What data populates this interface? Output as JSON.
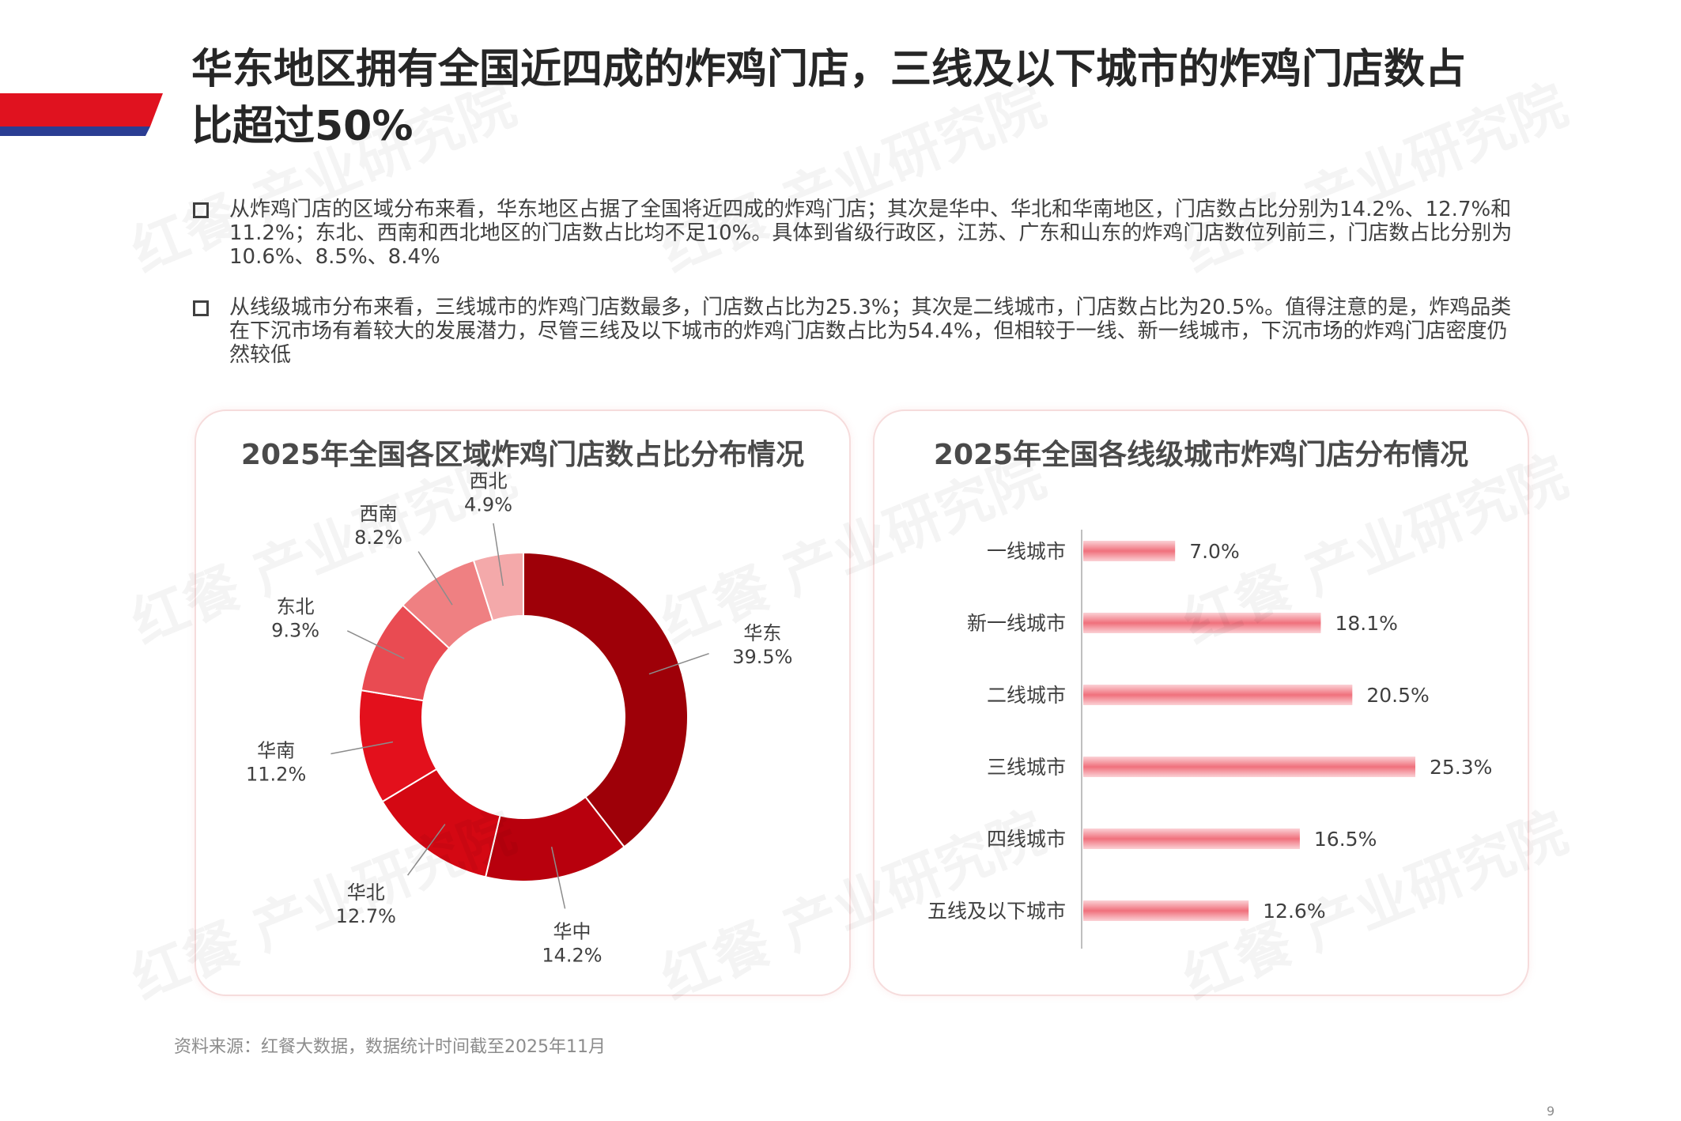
{
  "title": "华东地区拥有全国近四成的炸鸡门店，三线及以下城市的炸鸡门店数占比超过50%",
  "bullets": [
    "从炸鸡门店的区域分布来看，华东地区占据了全国将近四成的炸鸡门店；其次是华中、华北和华南地区，门店数占比分别为14.2%、12.7%和11.2%；东北、西南和西北地区的门店数占比均不足10%。具体到省级行政区，江苏、广东和山东的炸鸡门店数位列前三，门店数占比分别为10.6%、8.5%、8.4%",
    "从线级城市分布来看，三线城市的炸鸡门店数最多，门店数占比为25.3%；其次是二线城市，门店数占比为20.5%。值得注意的是，炸鸡品类在下沉市场有着较大的发展潜力，尽管三线及以下城市的炸鸡门店数占比为54.4%，但相较于一线、新一线城市，下沉市场的炸鸡门店密度仍然较低"
  ],
  "watermark": "红餐 产业研究院",
  "chart_data": [
    {
      "type": "pie",
      "title": "2025年全国各区域炸鸡门店数占比分布情况",
      "categories": [
        "华东",
        "华中",
        "华北",
        "华南",
        "东北",
        "西南",
        "西北"
      ],
      "values": [
        39.5,
        14.2,
        12.7,
        11.2,
        9.3,
        8.2,
        4.9
      ],
      "labels": [
        "39.5%",
        "14.2%",
        "12.7%",
        "11.2%",
        "9.3%",
        "8.2%",
        "4.9%"
      ],
      "colors": [
        "#9e0008",
        "#b8000d",
        "#d40813",
        "#e3101c",
        "#e94b52",
        "#ef8082",
        "#f4a9aa"
      ],
      "donut": true
    },
    {
      "type": "bar",
      "orientation": "horizontal",
      "title": "2025年全国各线级城市炸鸡门店分布情况",
      "categories": [
        "一线城市",
        "新一线城市",
        "二线城市",
        "三线城市",
        "四线城市",
        "五线及以下城市"
      ],
      "values": [
        7.0,
        18.1,
        20.5,
        25.3,
        16.5,
        12.6
      ],
      "labels": [
        "7.0%",
        "18.1%",
        "20.5%",
        "25.3%",
        "16.5%",
        "12.6%"
      ],
      "color": "#f0707c"
    }
  ],
  "source": "资料来源：红餐大数据，数据统计时间截至2025年11月",
  "page_number": "9"
}
